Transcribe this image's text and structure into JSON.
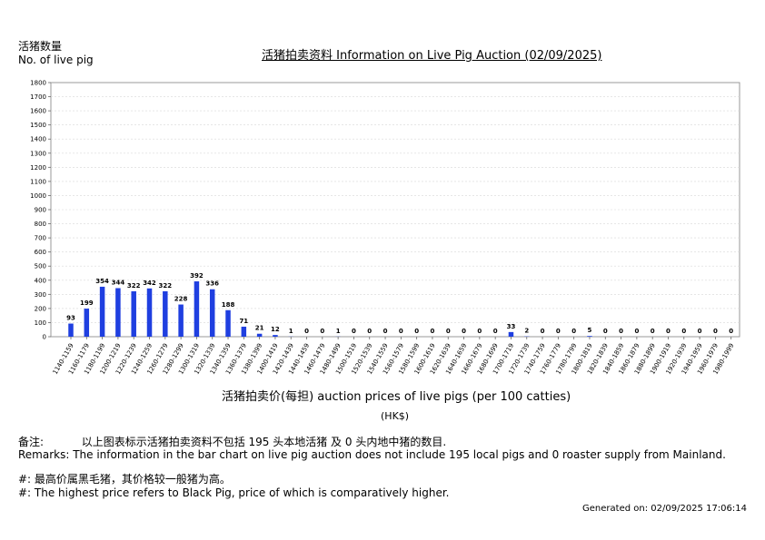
{
  "chart_data": {
    "type": "bar",
    "title": "活猪拍卖资料 Information on Live Pig Auction (02/09/2025)",
    "ylabel_cn": "活猪数量",
    "ylabel_en": "No. of live pig",
    "xlabel": "活猪拍卖价(每担) auction prices of live pigs (per 100 catties)",
    "xunit": "(HK$)",
    "ylim": [
      0,
      1800
    ],
    "yticks": [
      0,
      100,
      200,
      300,
      400,
      500,
      600,
      700,
      800,
      900,
      1000,
      1100,
      1200,
      1300,
      1400,
      1500,
      1600,
      1700,
      1800
    ],
    "grid": true,
    "bar_color": "#1f3fe0",
    "categories": [
      "1140-1159",
      "1160-1179",
      "1180-1199",
      "1200-1219",
      "1220-1239",
      "1240-1259",
      "1260-1279",
      "1280-1299",
      "1300-1319",
      "1320-1339",
      "1340-1359",
      "1360-1379",
      "1380-1399",
      "1400-1419",
      "1420-1439",
      "1440-1459",
      "1460-1479",
      "1480-1499",
      "1500-1519",
      "1520-1539",
      "1540-1559",
      "1560-1579",
      "1580-1599",
      "1600-1619",
      "1620-1639",
      "1640-1659",
      "1660-1679",
      "1680-1699",
      "1700-1719",
      "1720-1739",
      "1740-1759",
      "1760-1779",
      "1780-1799",
      "1800-1819",
      "1820-1839",
      "1840-1859",
      "1860-1879",
      "1880-1899",
      "1900-1919",
      "1920-1939",
      "1940-1959",
      "1960-1979",
      "1980-1999"
    ],
    "values": [
      93,
      199,
      354,
      344,
      322,
      342,
      322,
      228,
      392,
      336,
      188,
      71,
      21,
      12,
      1,
      0,
      0,
      1,
      0,
      0,
      0,
      0,
      0,
      0,
      0,
      0,
      0,
      0,
      33,
      2,
      0,
      0,
      0,
      5,
      0,
      0,
      0,
      0,
      0,
      0,
      0,
      0,
      0
    ]
  },
  "remarks": {
    "cn_label": "备注:",
    "cn_text": "以上图表标示活猪拍卖资料不包括 195 头本地活猪 及 0 头内地中猪的数目.",
    "en": "Remarks: The information in the bar chart on live pig auction does not include 195 local pigs and 0 roaster supply from Mainland.",
    "note_cn": "#: 最高价属黑毛猪，其价格较一般猪为高。",
    "note_en": "#: The highest price refers to Black Pig, price of which is comparatively higher."
  },
  "generated": "Generated on: 02/09/2025 17:06:14"
}
